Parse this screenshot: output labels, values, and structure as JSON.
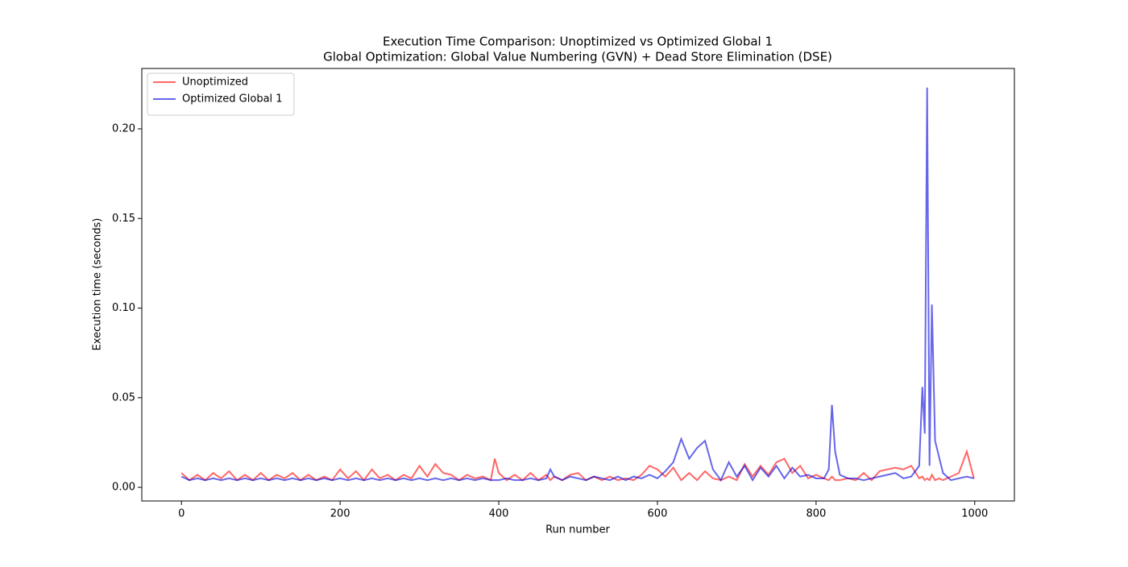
{
  "chart_data": {
    "type": "line",
    "title": "Execution Time Comparison: Unoptimized vs Optimized Global 1",
    "subtitle": "Global Optimization: Global Value Numbering (GVN) + Dead Store Elimination (DSE)",
    "x_label": "Run number",
    "y_label": "Execution time (seconds)",
    "xlim": [
      -50,
      1050
    ],
    "xticks": [
      0,
      200,
      400,
      600,
      800,
      1000
    ],
    "ylim": [
      -0.0076,
      0.2337
    ],
    "yticks": [
      {
        "value": 0,
        "label": "0.00"
      },
      {
        "value": 0.05,
        "label": "0.05"
      },
      {
        "value": 0.1,
        "label": "0.10"
      },
      {
        "value": 0.15,
        "label": "0.15"
      },
      {
        "value": 0.2,
        "label": "0.20"
      }
    ],
    "legend": "upper left",
    "opacity": 0.6,
    "x": [
      0,
      10,
      20,
      30,
      40,
      50,
      60,
      70,
      80,
      90,
      100,
      110,
      120,
      130,
      140,
      150,
      160,
      170,
      180,
      190,
      200,
      210,
      220,
      230,
      240,
      250,
      260,
      270,
      280,
      290,
      300,
      310,
      320,
      330,
      340,
      350,
      360,
      370,
      380,
      390,
      395,
      400,
      410,
      420,
      430,
      440,
      450,
      460,
      465,
      470,
      480,
      490,
      500,
      510,
      520,
      530,
      540,
      550,
      560,
      570,
      580,
      590,
      600,
      610,
      620,
      630,
      640,
      650,
      660,
      670,
      680,
      690,
      700,
      710,
      720,
      730,
      740,
      750,
      760,
      770,
      780,
      790,
      800,
      810,
      816,
      820,
      824,
      830,
      840,
      850,
      860,
      870,
      880,
      890,
      900,
      910,
      920,
      930,
      934,
      937,
      940,
      943,
      946,
      950,
      955,
      960,
      970,
      980,
      990,
      999
    ],
    "series": [
      {
        "name": "Unoptimized",
        "color": "#ff0000",
        "values": [
          0.008,
          0.004,
          0.007,
          0.004,
          0.008,
          0.005,
          0.009,
          0.004,
          0.007,
          0.004,
          0.008,
          0.004,
          0.007,
          0.005,
          0.008,
          0.004,
          0.007,
          0.004,
          0.006,
          0.004,
          0.01,
          0.005,
          0.009,
          0.004,
          0.01,
          0.005,
          0.007,
          0.004,
          0.007,
          0.005,
          0.012,
          0.006,
          0.013,
          0.008,
          0.007,
          0.004,
          0.007,
          0.005,
          0.006,
          0.004,
          0.016,
          0.008,
          0.004,
          0.007,
          0.004,
          0.008,
          0.004,
          0.007,
          0.004,
          0.006,
          0.004,
          0.007,
          0.008,
          0.004,
          0.006,
          0.004,
          0.006,
          0.004,
          0.005,
          0.004,
          0.007,
          0.012,
          0.01,
          0.006,
          0.011,
          0.004,
          0.008,
          0.004,
          0.009,
          0.005,
          0.004,
          0.006,
          0.004,
          0.013,
          0.006,
          0.012,
          0.007,
          0.014,
          0.016,
          0.008,
          0.012,
          0.005,
          0.007,
          0.005,
          0.004,
          0.006,
          0.004,
          0.004,
          0.005,
          0.004,
          0.008,
          0.004,
          0.009,
          0.01,
          0.011,
          0.01,
          0.012,
          0.005,
          0.006,
          0.004,
          0.005,
          0.004,
          0.007,
          0.004,
          0.005,
          0.004,
          0.006,
          0.008,
          0.02,
          0.005
        ]
      },
      {
        "name": "Optimized Global 1",
        "color": "#0000dd",
        "values": [
          0.006,
          0.004,
          0.005,
          0.004,
          0.005,
          0.004,
          0.005,
          0.004,
          0.005,
          0.004,
          0.005,
          0.004,
          0.005,
          0.004,
          0.005,
          0.004,
          0.005,
          0.004,
          0.005,
          0.004,
          0.005,
          0.004,
          0.005,
          0.004,
          0.005,
          0.004,
          0.005,
          0.004,
          0.005,
          0.004,
          0.005,
          0.004,
          0.005,
          0.004,
          0.005,
          0.004,
          0.005,
          0.004,
          0.005,
          0.004,
          0.004,
          0.004,
          0.005,
          0.004,
          0.004,
          0.005,
          0.004,
          0.005,
          0.01,
          0.006,
          0.004,
          0.006,
          0.005,
          0.004,
          0.006,
          0.005,
          0.004,
          0.006,
          0.004,
          0.006,
          0.005,
          0.007,
          0.005,
          0.009,
          0.014,
          0.027,
          0.016,
          0.022,
          0.026,
          0.01,
          0.004,
          0.014,
          0.006,
          0.012,
          0.004,
          0.011,
          0.006,
          0.012,
          0.005,
          0.011,
          0.006,
          0.007,
          0.005,
          0.005,
          0.01,
          0.046,
          0.02,
          0.007,
          0.005,
          0.005,
          0.004,
          0.005,
          0.006,
          0.007,
          0.008,
          0.005,
          0.006,
          0.012,
          0.056,
          0.03,
          0.223,
          0.012,
          0.102,
          0.026,
          0.017,
          0.008,
          0.004,
          0.005,
          0.006,
          0.005
        ]
      }
    ]
  }
}
